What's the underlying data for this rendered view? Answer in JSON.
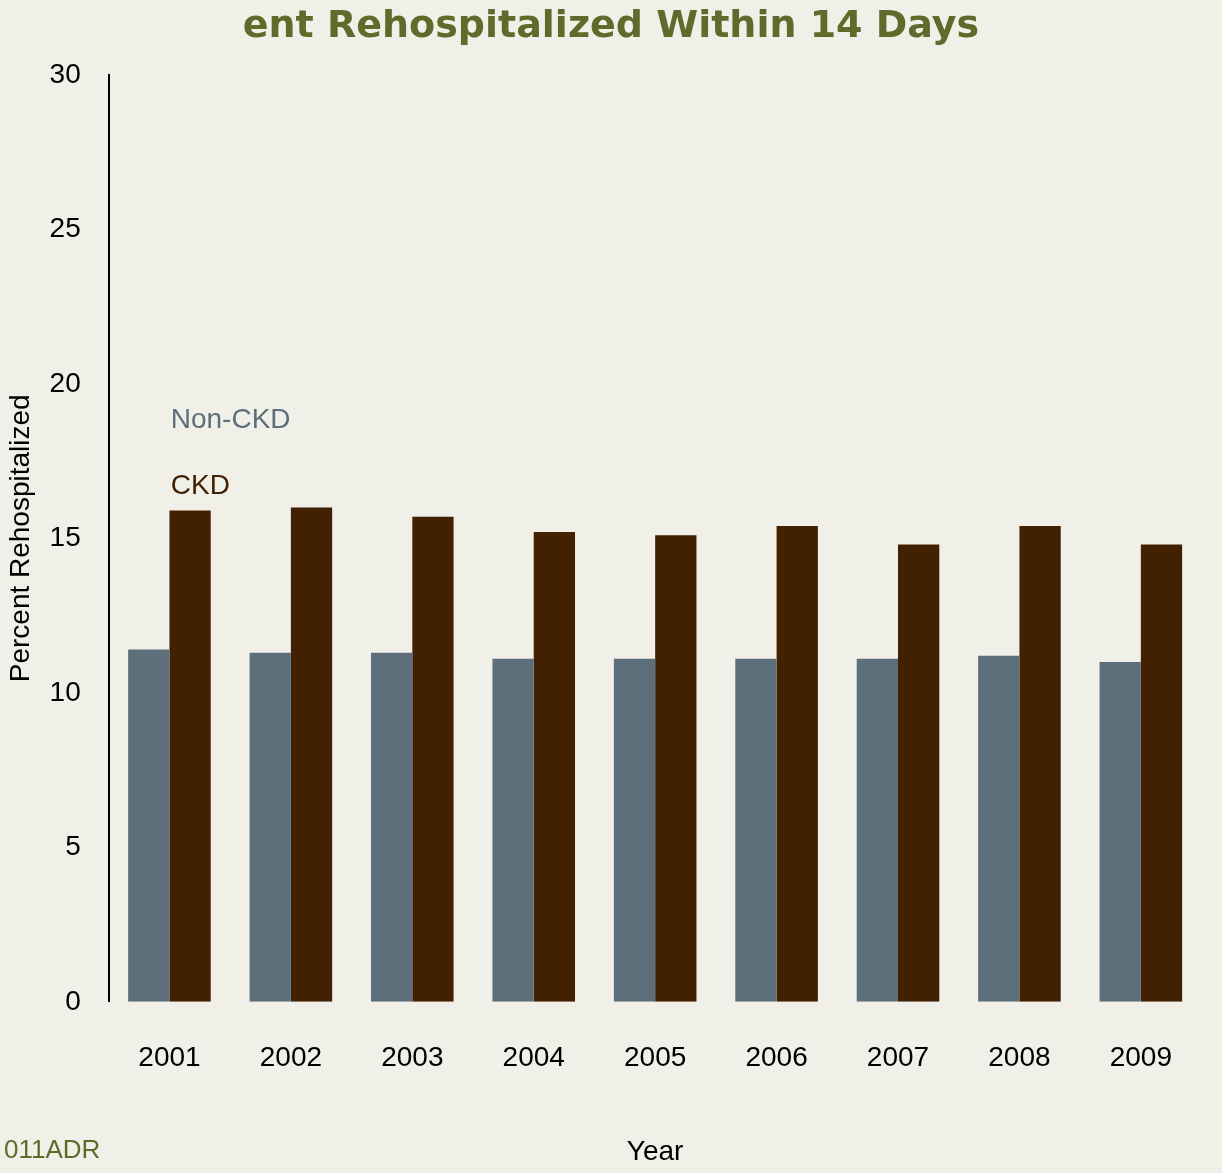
{
  "chart_data": {
    "type": "bar",
    "title": "ent Rehospitalized Within 14 Days",
    "xlabel": "Year",
    "ylabel": "Percent Rehospitalized",
    "categories": [
      "2001",
      "2002",
      "2003",
      "2004",
      "2005",
      "2006",
      "2007",
      "2008",
      "2009"
    ],
    "series": [
      {
        "name": "Non-CKD",
        "color": "#5c6f7b",
        "values": [
          11.4,
          11.3,
          11.3,
          11.1,
          11.1,
          11.1,
          11.1,
          11.2,
          11.0
        ]
      },
      {
        "name": "CKD",
        "color": "#412102",
        "values": [
          15.9,
          16.0,
          15.7,
          15.2,
          15.1,
          15.4,
          14.8,
          15.4,
          14.8
        ]
      }
    ],
    "ylim": [
      0,
      30
    ],
    "yticks": [
      0,
      5,
      10,
      15,
      20,
      25,
      30
    ],
    "grid": false,
    "annotations": [
      "011ADR"
    ]
  }
}
